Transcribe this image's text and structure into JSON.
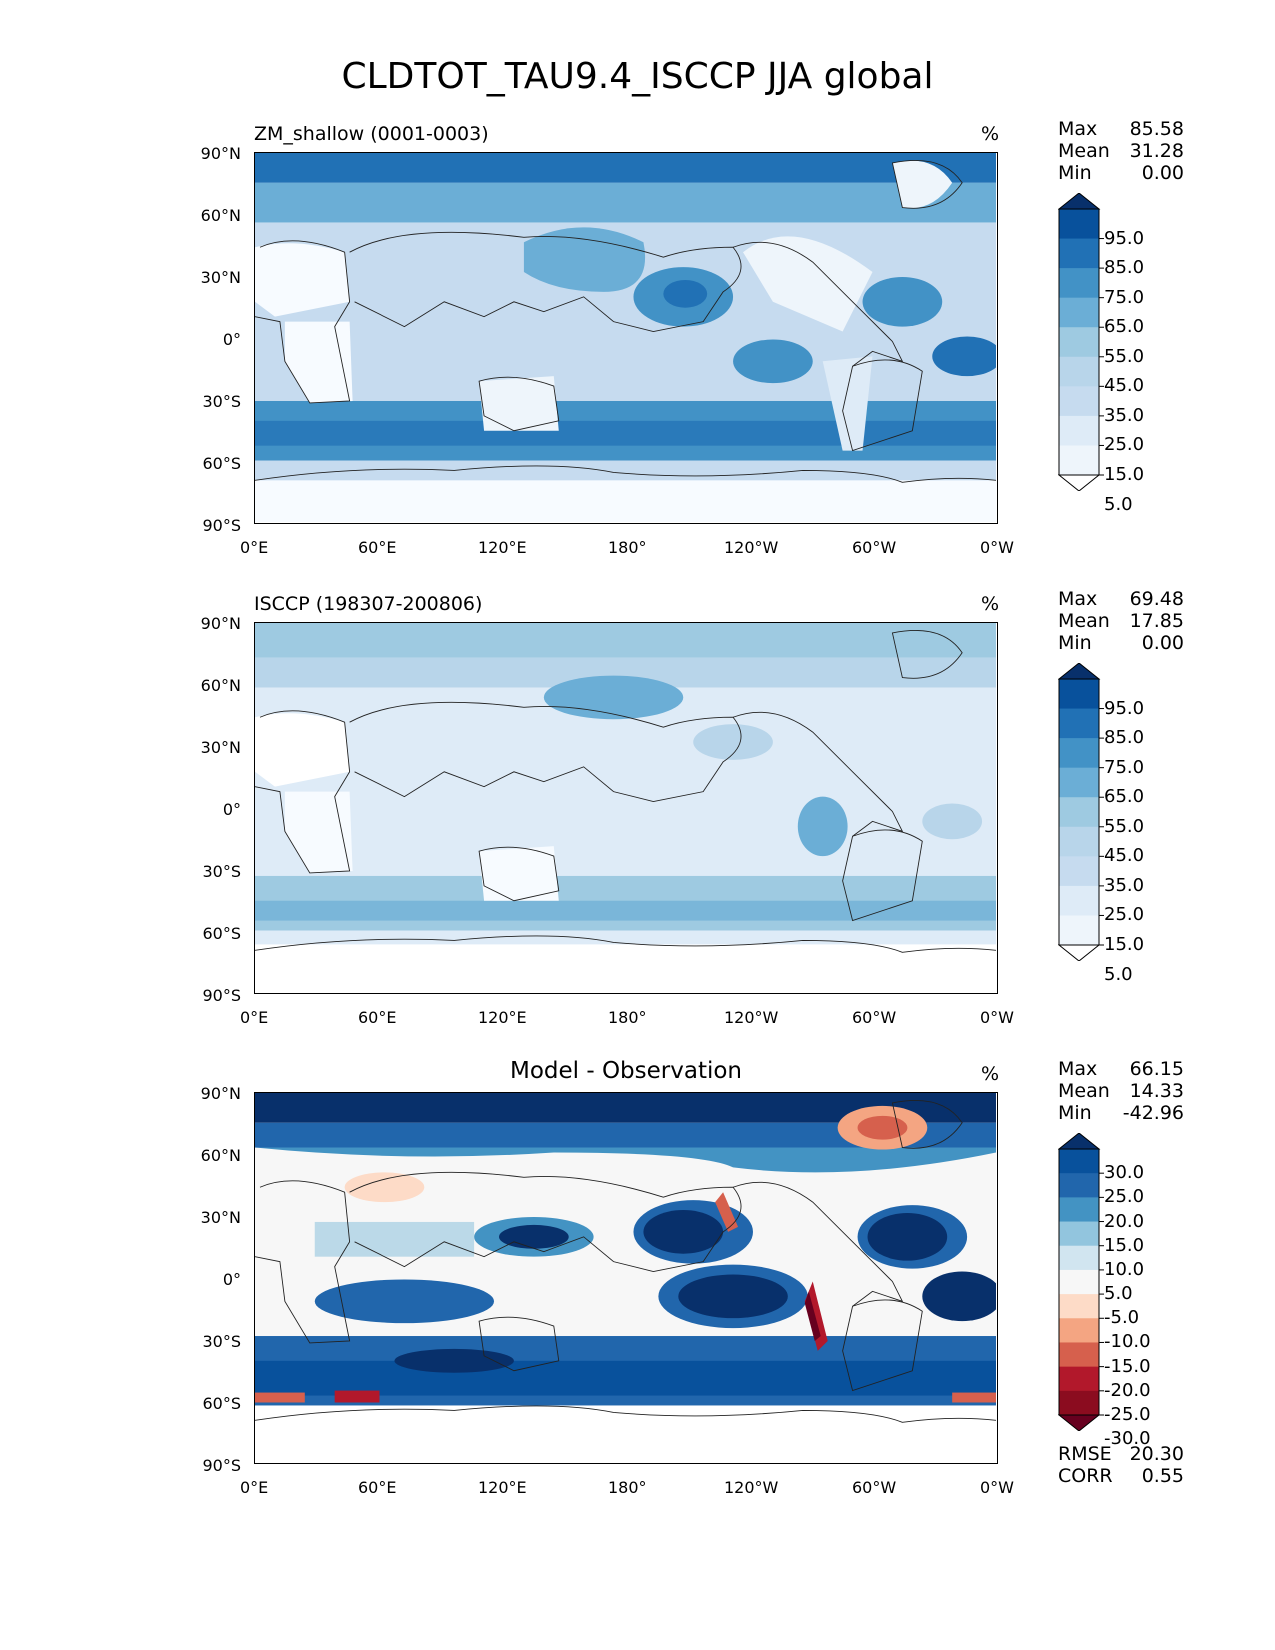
{
  "figure": {
    "title": "CLDTOT_TAU9.4_ISCCP JJA global"
  },
  "axes": {
    "lat_labels": [
      "90°N",
      "60°N",
      "30°N",
      "0°",
      "30°S",
      "60°S",
      "90°S"
    ],
    "lon_labels": [
      "0°E",
      "60°E",
      "120°E",
      "180°",
      "120°W",
      "60°W",
      "0°W"
    ]
  },
  "panels": [
    {
      "title": "ZM_shallow (0001-0003)",
      "unit": "%",
      "stats": [
        {
          "label": "Max",
          "value": "85.58"
        },
        {
          "label": "Mean",
          "value": "31.28"
        },
        {
          "label": "Min",
          "value": "0.00"
        }
      ],
      "colorbar": {
        "labels": [
          "95.0",
          "85.0",
          "75.0",
          "65.0",
          "55.0",
          "45.0",
          "35.0",
          "25.0",
          "15.0",
          "5.0"
        ],
        "colors": [
          "#08306b",
          "#08519c",
          "#2171b5",
          "#4292c6",
          "#6baed6",
          "#9ecae1",
          "#b8d5ea",
          "#c6dbef",
          "#deebf7",
          "#eef5fb",
          "#ffffff"
        ]
      }
    },
    {
      "title": "ISCCP (198307-200806)",
      "unit": "%",
      "stats": [
        {
          "label": "Max",
          "value": "69.48"
        },
        {
          "label": "Mean",
          "value": "17.85"
        },
        {
          "label": "Min",
          "value": "0.00"
        }
      ],
      "colorbar": {
        "labels": [
          "95.0",
          "85.0",
          "75.0",
          "65.0",
          "55.0",
          "45.0",
          "35.0",
          "25.0",
          "15.0",
          "5.0"
        ],
        "colors": [
          "#08306b",
          "#08519c",
          "#2171b5",
          "#4292c6",
          "#6baed6",
          "#9ecae1",
          "#b8d5ea",
          "#c6dbef",
          "#deebf7",
          "#eef5fb",
          "#ffffff"
        ]
      }
    },
    {
      "title": "Model - Observation",
      "unit": "%",
      "stats": [
        {
          "label": "Max",
          "value": "66.15"
        },
        {
          "label": "Mean",
          "value": "14.33"
        },
        {
          "label": "Min",
          "value": "-42.96"
        }
      ],
      "colorbar": {
        "labels": [
          "30.0",
          "25.0",
          "20.0",
          "15.0",
          "10.0",
          "5.0",
          "-5.0",
          "-10.0",
          "-15.0",
          "-20.0",
          "-25.0",
          "-30.0"
        ],
        "colors": [
          "#08306b",
          "#08519c",
          "#2166ac",
          "#4393c3",
          "#92c5de",
          "#d1e5f0",
          "#f7f7f7",
          "#fddbc7",
          "#f4a582",
          "#d6604d",
          "#b2182b",
          "#8b0c1f",
          "#67001f"
        ]
      },
      "metrics": [
        {
          "label": "RMSE",
          "value": "20.30"
        },
        {
          "label": "CORR",
          "value": "0.55"
        }
      ]
    }
  ]
}
